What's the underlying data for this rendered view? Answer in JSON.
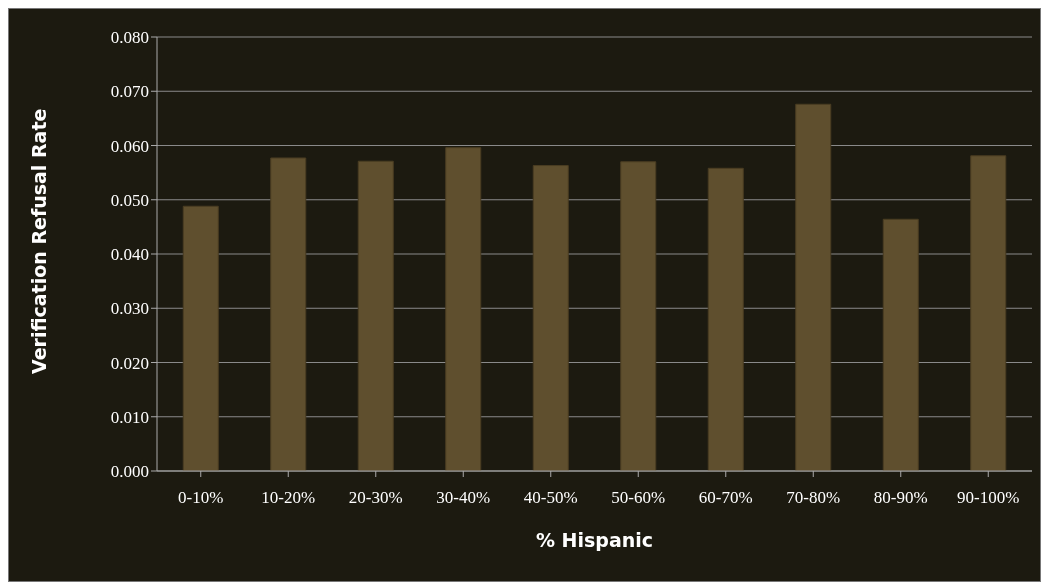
{
  "chart_data": {
    "type": "bar",
    "xlabel": "% Hispanic",
    "ylabel": "Verification Refusal Rate",
    "categories": [
      "0-10%",
      "10-20%",
      "20-30%",
      "30-40%",
      "40-50%",
      "50-60%",
      "60-70%",
      "70-80%",
      "80-90%",
      "90-100%"
    ],
    "values": [
      0.0488,
      0.0577,
      0.0571,
      0.0596,
      0.0563,
      0.057,
      0.0558,
      0.0676,
      0.0464,
      0.0581
    ],
    "color": "#5f4f2e",
    "ylim": [
      0,
      0.08
    ],
    "yticks": [
      {
        "value": 0,
        "label": "0.000"
      },
      {
        "value": 0.01,
        "label": "0.010"
      },
      {
        "value": 0.02,
        "label": "0.020"
      },
      {
        "value": 0.03,
        "label": "0.030"
      },
      {
        "value": 0.04,
        "label": "0.040"
      },
      {
        "value": 0.05,
        "label": "0.050"
      },
      {
        "value": 0.06,
        "label": "0.060"
      },
      {
        "value": 0.07,
        "label": "0.070"
      },
      {
        "value": 0.08,
        "label": "0.080"
      }
    ],
    "grid": "y",
    "legend": false
  }
}
